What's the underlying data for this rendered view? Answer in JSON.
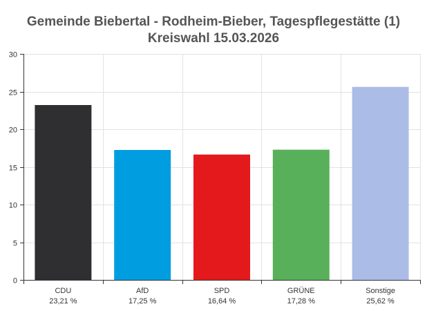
{
  "chart_data": {
    "type": "bar",
    "title": "Gemeinde Biebertal - Rodheim-Bieber, Tagespflegestätte (1)",
    "subtitle": "Kreiswahl 15.03.2026",
    "categories": [
      "CDU",
      "AfD",
      "SPD",
      "GRÜNE",
      "Sonstige"
    ],
    "values": [
      23.21,
      17.25,
      16.64,
      17.28,
      25.62
    ],
    "value_labels": [
      "23,21 %",
      "17,25 %",
      "16,64 %",
      "17,28 %",
      "25,62 %"
    ],
    "colors": [
      "#2f2e30",
      "#009ee0",
      "#e3191c",
      "#58b05a",
      "#abbde6"
    ],
    "ylim": [
      0,
      30
    ],
    "yticks": [
      0,
      5,
      10,
      15,
      20,
      25,
      30
    ],
    "xlabel": "",
    "ylabel": "",
    "grid": true
  }
}
